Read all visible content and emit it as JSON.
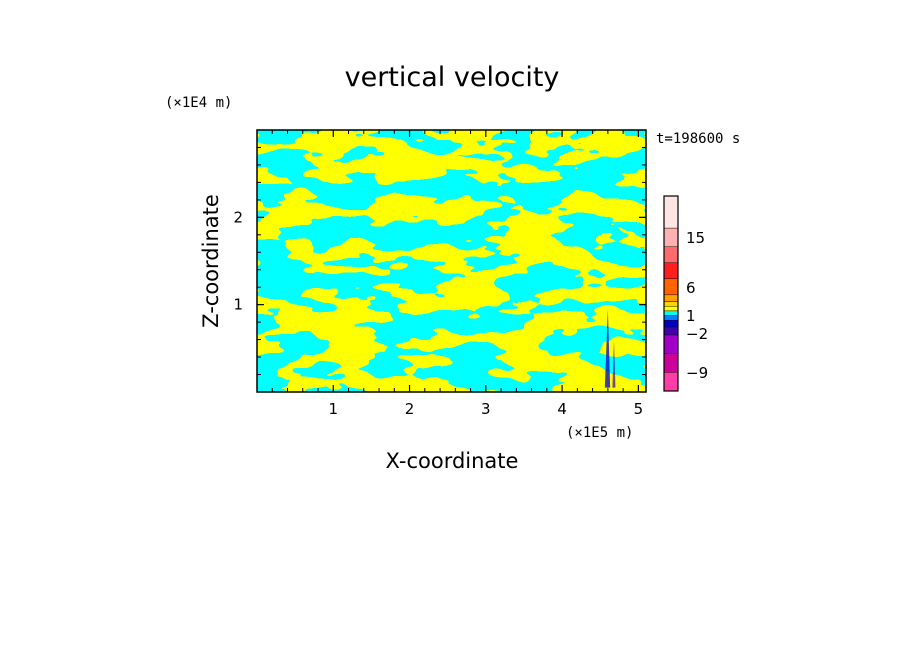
{
  "chart_data": {
    "type": "heatmap",
    "title": "vertical velocity",
    "xlabel": "X-coordinate",
    "ylabel": "Z-coordinate",
    "x_unit": "(×1E5 m)",
    "y_unit": "(×1E4 m)",
    "time_label": "t=198600 s",
    "xlim": [
      0,
      5.1
    ],
    "ylim": [
      0,
      3.0
    ],
    "x_ticks": [
      "1",
      "2",
      "3",
      "4",
      "5"
    ],
    "x_tick_values": [
      1,
      2,
      3,
      4,
      5
    ],
    "y_ticks": [
      "1",
      "2"
    ],
    "y_tick_values": [
      1,
      2
    ],
    "dominant_colors": {
      "positive_weak": "#ffff00",
      "negative_weak": "#00ffff"
    },
    "colorbar": {
      "levels": [
        {
          "color": "#ff3da6"
        },
        {
          "color": "#cc0099"
        },
        {
          "color": "#a000c8"
        },
        {
          "color": "#4000b0"
        },
        {
          "color": "#0000cc"
        },
        {
          "color": "#0080ff"
        },
        {
          "color": "#00ffff"
        },
        {
          "color": "#ffff00"
        },
        {
          "color": "#ffd200"
        },
        {
          "color": "#ffa000"
        },
        {
          "color": "#ff6400"
        },
        {
          "color": "#ff1e1e"
        },
        {
          "color": "#ff6b6b"
        },
        {
          "color": "#ffb0b0"
        },
        {
          "color": "#ffe4e4"
        }
      ],
      "labels": [
        "15",
        "6",
        "1",
        "−2",
        "−9"
      ],
      "label_values": [
        15,
        6,
        1,
        -2,
        -9
      ]
    }
  }
}
